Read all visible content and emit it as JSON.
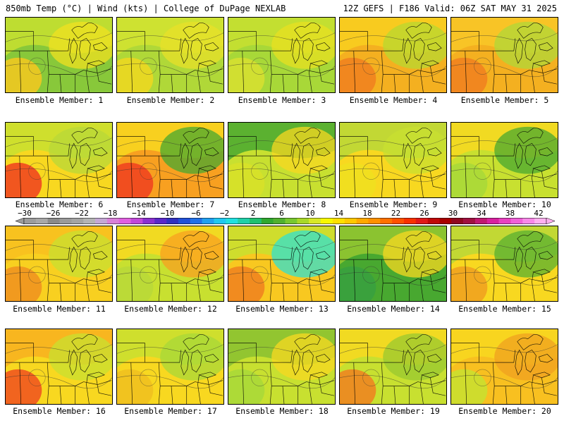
{
  "header": {
    "left": "850mb Temp (°C) | Wind (kts) | College of DuPage NEXLAB",
    "right": "12Z GEFS | F186 Valid: 06Z SAT MAY 31 2025"
  },
  "colorbar": {
    "ticks": [
      "-30",
      "-26",
      "-22",
      "-18",
      "-14",
      "-10",
      "-6",
      "-2",
      "2",
      "6",
      "10",
      "14",
      "18",
      "22",
      "26",
      "30",
      "34",
      "38",
      "42"
    ],
    "colors": [
      "#9c9c9c",
      "#a8a8a8",
      "#8a8a8a",
      "#9a9a9a",
      "#a4a4a4",
      "#b4b4b4",
      "#c4a8d4",
      "#d880d8",
      "#e060e0",
      "#c048d8",
      "#8a30d0",
      "#5a28c8",
      "#3030c0",
      "#2050d8",
      "#2070e8",
      "#20a0f0",
      "#20c8f0",
      "#20e0e0",
      "#20d0a8",
      "#20c070",
      "#30a830",
      "#50b030",
      "#78c830",
      "#a8d828",
      "#d8e828",
      "#f8f800",
      "#ffe000",
      "#ffc800",
      "#ffa800",
      "#ff9000",
      "#ff7000",
      "#ff5000",
      "#f83000",
      "#e01818",
      "#c00808",
      "#a80000",
      "#900820",
      "#a01040",
      "#c01870",
      "#d820a0",
      "#e840c0",
      "#f060d8",
      "#f888e8",
      "#ffb0f0"
    ]
  },
  "members": [
    {
      "label": "Ensemble Member: 1",
      "colors": [
        "#88c83a",
        "#c8e030",
        "#f0e020",
        "#f6c820"
      ]
    },
    {
      "label": "Ensemble Member: 2",
      "colors": [
        "#b0d838",
        "#d4e430",
        "#e8e028",
        "#f0d820"
      ]
    },
    {
      "label": "Ensemble Member: 3",
      "colors": [
        "#a8d838",
        "#c8e030",
        "#e8e020",
        "#d8e030"
      ]
    },
    {
      "label": "Ensemble Member: 4",
      "colors": [
        "#f4b020",
        "#f8d020",
        "#b8d830",
        "#f08020"
      ]
    },
    {
      "label": "Ensemble Member: 5",
      "colors": [
        "#f4b020",
        "#f8c828",
        "#b0d838",
        "#f08020"
      ]
    },
    {
      "label": "Ensemble Member: 6",
      "colors": [
        "#f8d820",
        "#c8e030",
        "#b8d838",
        "#f04020"
      ]
    },
    {
      "label": "Ensemble Member: 7",
      "colors": [
        "#f8a020",
        "#f8d820",
        "#48a830",
        "#f04020"
      ]
    },
    {
      "label": "Ensemble Member: 8",
      "colors": [
        "#c8e030",
        "#48a830",
        "#f8d820",
        "#d8e028"
      ]
    },
    {
      "label": "Ensemble Member: 9",
      "colors": [
        "#f8d820",
        "#b8d838",
        "#c8e030",
        "#f0e020"
      ]
    },
    {
      "label": "Ensemble Member: 10",
      "colors": [
        "#c8e030",
        "#f8d820",
        "#48a830",
        "#a8d838"
      ]
    },
    {
      "label": "Ensemble Member: 11",
      "colors": [
        "#f8d020",
        "#f8c020",
        "#c8e030",
        "#f09020"
      ]
    },
    {
      "label": "Ensemble Member: 12",
      "colors": [
        "#c8e030",
        "#f8d820",
        "#f8a020",
        "#b8d838"
      ]
    },
    {
      "label": "Ensemble Member: 13",
      "colors": [
        "#f8c820",
        "#c8e030",
        "#30e0d0",
        "#f08020"
      ]
    },
    {
      "label": "Ensemble Member: 14",
      "colors": [
        "#48a830",
        "#98c830",
        "#f8d820",
        "#38a040"
      ]
    },
    {
      "label": "Ensemble Member: 15",
      "colors": [
        "#f8d820",
        "#b8d838",
        "#58b030",
        "#f0a020"
      ]
    },
    {
      "label": "Ensemble Member: 16",
      "colors": [
        "#f8d820",
        "#f8b020",
        "#c8e030",
        "#f05020"
      ]
    },
    {
      "label": "Ensemble Member: 17",
      "colors": [
        "#f8d820",
        "#c8e030",
        "#a8d838",
        "#f0c020"
      ]
    },
    {
      "label": "Ensemble Member: 18",
      "colors": [
        "#c8e030",
        "#88c030",
        "#f8d820",
        "#a8d838"
      ]
    },
    {
      "label": "Ensemble Member: 19",
      "colors": [
        "#c8e030",
        "#f8d820",
        "#98c830",
        "#f08020"
      ]
    },
    {
      "label": "Ensemble Member: 20",
      "colors": [
        "#f8c020",
        "#f8d820",
        "#f0a020",
        "#c8e030"
      ]
    }
  ]
}
